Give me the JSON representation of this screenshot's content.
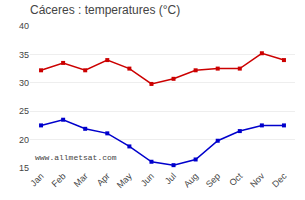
{
  "chart_data": {
    "type": "line",
    "title": "Cáceres : temperatures (°C)",
    "categories": [
      "Jan",
      "Feb",
      "Mar",
      "Apr",
      "May",
      "Jun",
      "Jul",
      "Aug",
      "Sep",
      "Oct",
      "Nov",
      "Dec"
    ],
    "series": [
      {
        "color": "#cc0000",
        "marker": "square",
        "values": [
          32.2,
          33.5,
          32.2,
          34.0,
          32.5,
          29.8,
          30.7,
          32.2,
          32.5,
          32.5,
          35.2,
          34.0
        ]
      },
      {
        "color": "#0000cc",
        "marker": "square",
        "values": [
          22.5,
          23.5,
          21.9,
          21.1,
          18.8,
          16.1,
          15.5,
          16.5,
          19.8,
          21.5,
          22.5,
          22.5
        ]
      }
    ],
    "ylim": [
      15,
      40
    ],
    "yticks": [
      15,
      20,
      25,
      30,
      35,
      40
    ],
    "grid": true,
    "annotations": [
      "www.allmetsat.com"
    ]
  }
}
